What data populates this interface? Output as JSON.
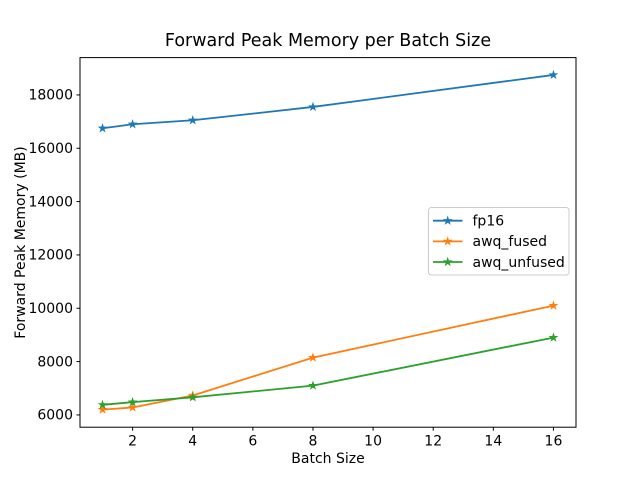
{
  "chart_data": {
    "type": "line",
    "title": "Forward Peak Memory per Batch Size",
    "xlabel": "Batch Size",
    "ylabel": "Forward Peak Memory (MB)",
    "x": [
      1,
      2,
      4,
      8,
      16
    ],
    "series": [
      {
        "name": "fp16",
        "color": "#1f77b4",
        "values": [
          16750,
          16900,
          17050,
          17550,
          18750
        ]
      },
      {
        "name": "awq_fused",
        "color": "#ff7f0e",
        "values": [
          6200,
          6280,
          6730,
          8150,
          10100
        ]
      },
      {
        "name": "awq_unfused",
        "color": "#2ca02c",
        "values": [
          6380,
          6480,
          6660,
          7100,
          8900
        ]
      }
    ],
    "xticks": [
      2,
      4,
      6,
      8,
      10,
      12,
      14,
      16
    ],
    "yticks": [
      6000,
      8000,
      10000,
      12000,
      14000,
      16000,
      18000
    ],
    "xlim": [
      0.25,
      16.75
    ],
    "ylim": [
      5540,
      19400
    ],
    "marker": "star",
    "grid": false,
    "legend": {
      "position": "center right",
      "entries": [
        "fp16",
        "awq_fused",
        "awq_unfused"
      ]
    },
    "colors": {
      "background": "#ffffff",
      "spine": "#000000",
      "legend_border": "#cccccc"
    }
  }
}
